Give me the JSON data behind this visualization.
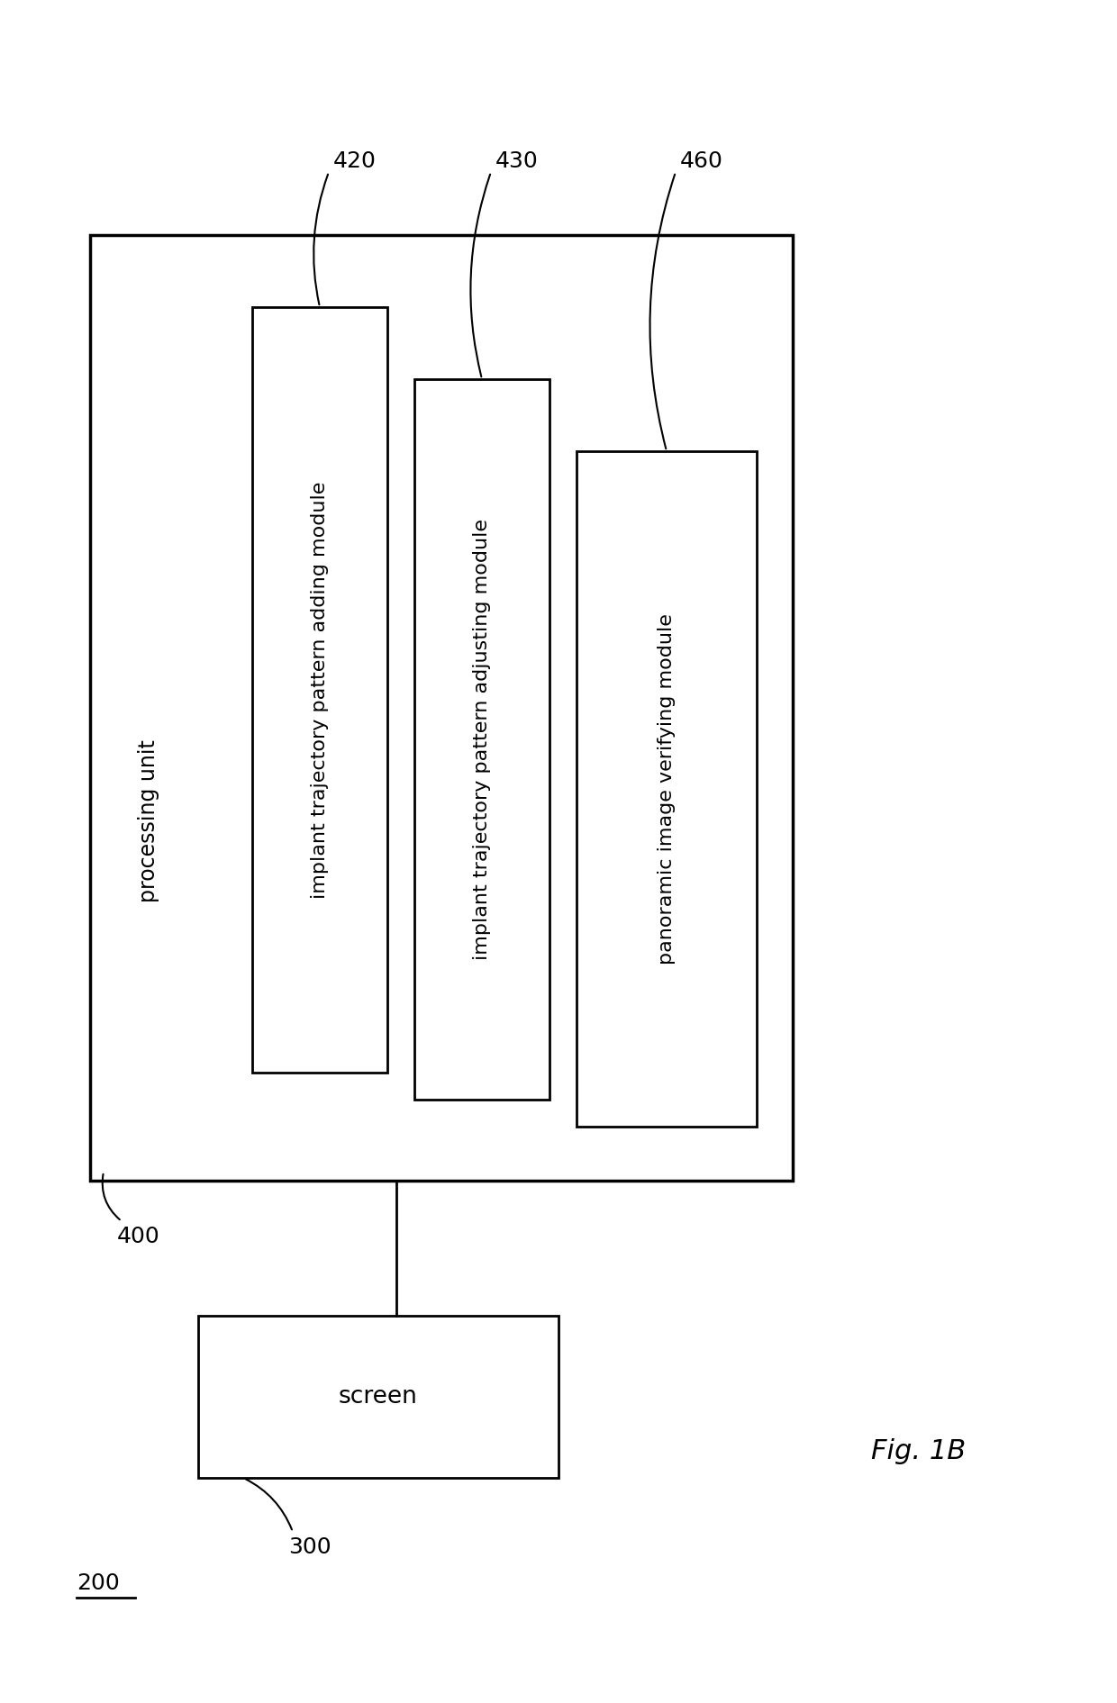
{
  "fig_width": 12.4,
  "fig_height": 18.91,
  "background_color": "#ffffff",
  "fig_label": "Fig. 1B",
  "fig_label_fontsize": 22,
  "processing_unit_label": "processing unit",
  "screen_label": "screen",
  "module_labels": [
    "implant trajectory pattern adding module",
    "implant trajectory pattern adjusting module",
    "panoramic image verifying module"
  ],
  "ref_nums_modules": [
    "420",
    "430",
    "460"
  ],
  "ref_200": "200",
  "ref_300": "300",
  "ref_400": "400",
  "ref_fontsize": 18,
  "label_fontsize": 17,
  "module_label_fontsize": 16,
  "fig_label_fontsize_val": 22
}
